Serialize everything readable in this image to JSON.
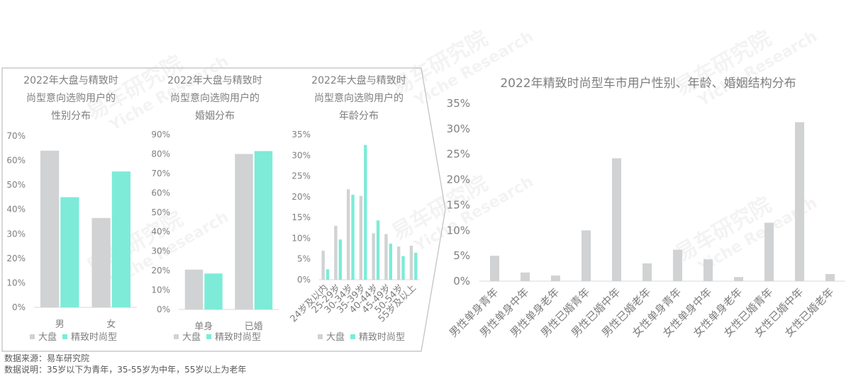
{
  "colors": {
    "market": "#d0d2d3",
    "premium": "#7debd8",
    "frame": "#bfbfbf",
    "grid": "#d9d9d9",
    "text": "#7f7f7f"
  },
  "watermark": {
    "brand": "易车研究院",
    "sub": "Yiche Research"
  },
  "legend": {
    "market": "大盘",
    "premium": "精致时尚型"
  },
  "notes": {
    "source": "数据来源：易车研究院",
    "explain": "数据说明：35岁以下为青年，35-55岁为中年，55岁以上为老年"
  },
  "chart_data": [
    {
      "type": "bar",
      "title_lines": [
        "2022年大盘与精致时",
        "尚型意向选购用户的",
        "性别分布"
      ],
      "categories": [
        "男",
        "女"
      ],
      "yticks": [
        "0%",
        "10%",
        "20%",
        "30%",
        "40%",
        "50%",
        "60%",
        "70%"
      ],
      "ylim": [
        0,
        70
      ],
      "series": [
        {
          "name": "大盘",
          "values": [
            64,
            36.5
          ]
        },
        {
          "name": "精致时尚型",
          "values": [
            45,
            55.5
          ]
        }
      ],
      "legend": "bottom"
    },
    {
      "type": "bar",
      "title_lines": [
        "2022年大盘与精致时",
        "尚型意向选购用户的",
        "婚姻分布"
      ],
      "categories": [
        "单身",
        "已婚"
      ],
      "yticks": [
        "0%",
        "10%",
        "20%",
        "30%",
        "40%",
        "50%",
        "60%",
        "70%",
        "80%",
        "90%"
      ],
      "ylim": [
        0,
        90
      ],
      "series": [
        {
          "name": "大盘",
          "values": [
            20.5,
            80
          ]
        },
        {
          "name": "精致时尚型",
          "values": [
            18.5,
            81.5
          ]
        }
      ],
      "legend": "bottom"
    },
    {
      "type": "bar",
      "title_lines": [
        "2022年大盘与精致时",
        "尚型意向选购用户的",
        "年龄分布"
      ],
      "categories": [
        "24岁及以内",
        "25-29岁",
        "30-34岁",
        "35-39岁",
        "40-44岁",
        "45-49岁",
        "50-54岁",
        "55岁及以上"
      ],
      "yticks": [
        "0%",
        "5%",
        "10%",
        "15%",
        "20%",
        "25%",
        "30%",
        "35%"
      ],
      "ylim": [
        0,
        35
      ],
      "series": [
        {
          "name": "大盘",
          "values": [
            7,
            13,
            21.8,
            20.2,
            11.2,
            11,
            8,
            8.2
          ]
        },
        {
          "name": "精致时尚型",
          "values": [
            2.5,
            9.7,
            20.5,
            32.5,
            14.3,
            8.7,
            5.7,
            6.5
          ]
        }
      ],
      "legend": "bottom"
    },
    {
      "type": "bar",
      "title": "2022年精致时尚型车市用户性别、年龄、婚姻结构分布",
      "categories": [
        "男性单身青年",
        "男性单身中年",
        "男性单身老年",
        "男性已婚青年",
        "男性已婚中年",
        "男性已婚老年",
        "女性单身青年",
        "女性单身中年",
        "女性单身老年",
        "女性已婚青年",
        "女性已婚中年",
        "女性已婚老年"
      ],
      "yticks": [
        "0%",
        "5%",
        "10%",
        "15%",
        "20%",
        "25%",
        "30%",
        "35%"
      ],
      "ylim": [
        0,
        35
      ],
      "series": [
        {
          "values": [
            5,
            1.7,
            1.1,
            10,
            24.2,
            3.5,
            6.2,
            4.3,
            0.8,
            11.5,
            31.3,
            1.4
          ]
        }
      ]
    }
  ]
}
